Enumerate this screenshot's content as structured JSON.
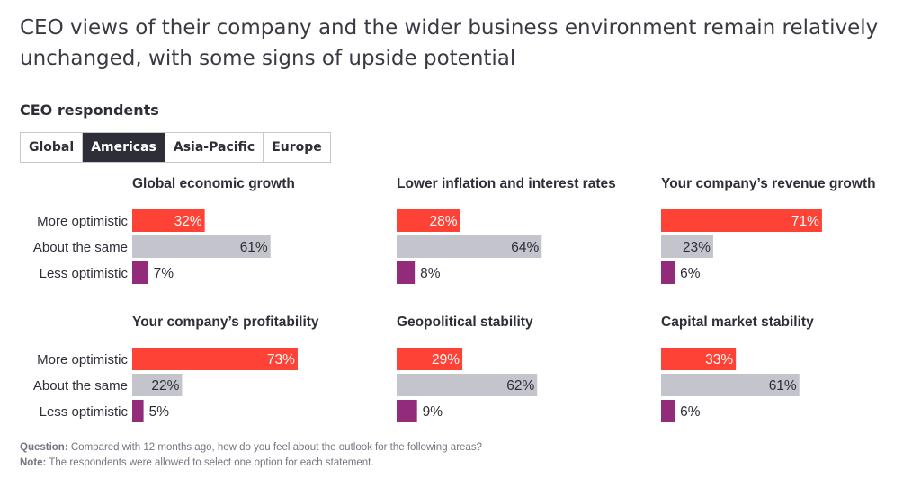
{
  "title": "CEO views of their company and the wider business environment remain relatively unchanged, with some signs of upside potential",
  "subtitle": "CEO respondents",
  "tabs": [
    {
      "label": "Global",
      "active": false
    },
    {
      "label": "Americas",
      "active": true
    },
    {
      "label": "Asia-Pacific",
      "active": false
    },
    {
      "label": "Europe",
      "active": false
    }
  ],
  "colors": {
    "more": "#ff4236",
    "same": "#c4c4cd",
    "less": "#912b7a",
    "text": "#2e2e38"
  },
  "chart_data": {
    "type": "bar",
    "orientation": "horizontal",
    "categories": [
      "More optimistic",
      "About the same",
      "Less optimistic"
    ],
    "value_suffix": "%",
    "xlim": [
      0,
      100
    ],
    "panels": [
      {
        "title": "Global economic growth",
        "values": [
          32,
          61,
          7
        ]
      },
      {
        "title": "Lower inflation and interest rates",
        "values": [
          28,
          64,
          8
        ]
      },
      {
        "title": "Your company’s revenue growth",
        "values": [
          71,
          23,
          6
        ]
      },
      {
        "title": "Your company’s profitability",
        "values": [
          73,
          22,
          5
        ]
      },
      {
        "title": "Geopolitical stability",
        "values": [
          29,
          62,
          9
        ]
      },
      {
        "title": "Capital market stability",
        "values": [
          33,
          61,
          6
        ]
      }
    ]
  },
  "footnote": {
    "question_label": "Question:",
    "question_text": " Compared with 12 months ago, how do you feel about the outlook for the following areas?",
    "note_label": "Note:",
    "note_text": " The respondents were allowed to select one option for each statement."
  }
}
